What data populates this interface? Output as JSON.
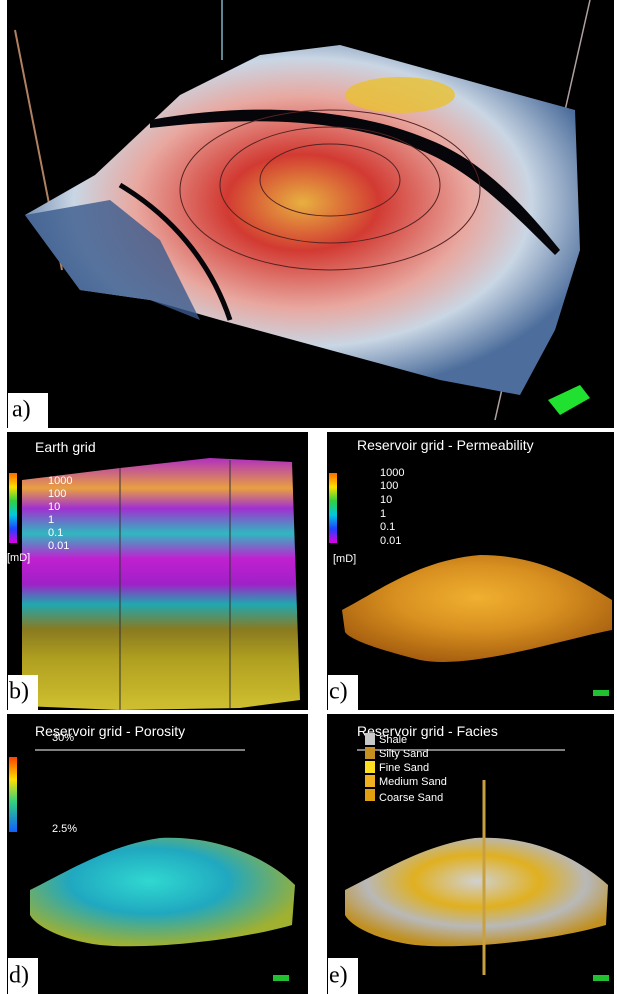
{
  "panels": [
    {
      "label": "a)"
    },
    {
      "label": "b)",
      "title": "Earth grid",
      "legend": {
        "labels": [
          "1000",
          "100",
          "10",
          "1",
          "0.1",
          "0.01"
        ],
        "unit": "[mD]"
      }
    },
    {
      "label": "c)",
      "title": "Reservoir grid - Permeability",
      "legend": {
        "labels": [
          "1000",
          "100",
          "10",
          "1",
          "0.1",
          "0.01"
        ],
        "unit": "[mD]"
      }
    },
    {
      "label": "d)",
      "title": "Reservoir grid - Porosity",
      "legend": {
        "labels": [
          "30%",
          "2.5%"
        ]
      }
    },
    {
      "label": "e)",
      "title": "Reservoir grid - Facies",
      "legend": {
        "labels": [
          "Shale",
          "Silty Sand",
          "Fine Sand",
          "Medium Sand",
          "Coarse Sand"
        ]
      }
    }
  ]
}
